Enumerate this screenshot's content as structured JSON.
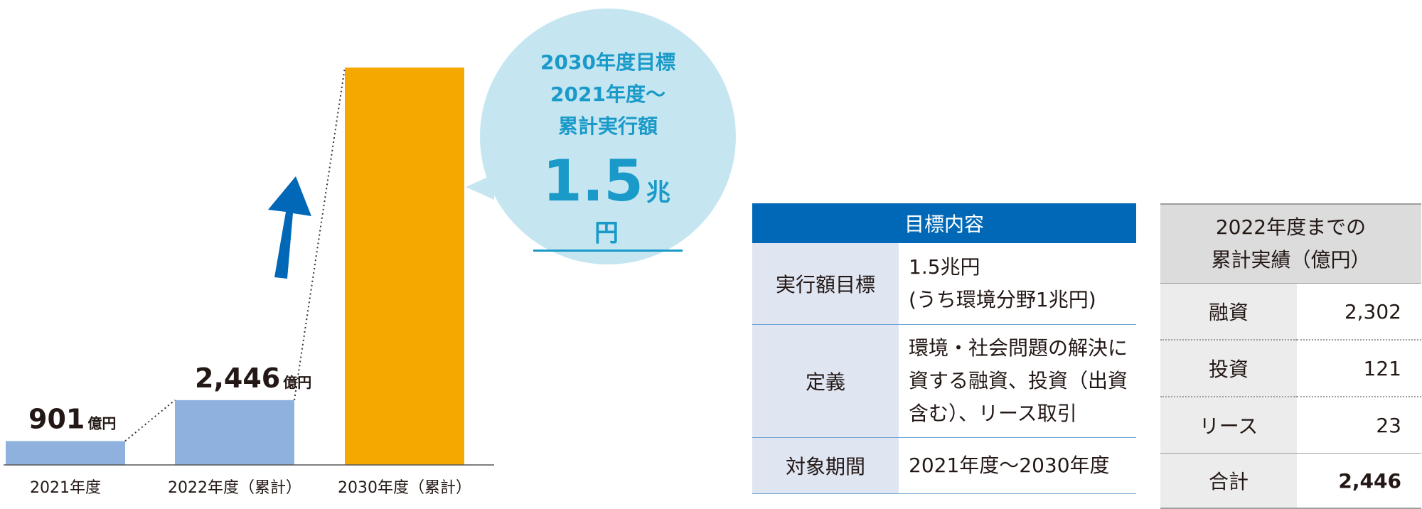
{
  "chart_data": {
    "type": "bar",
    "categories": [
      "2021年度",
      "2022年度（累計）",
      "2030年度（累計）"
    ],
    "values": [
      901,
      2446,
      15000
    ],
    "value_labels": [
      {
        "num": "901",
        "unit": "億円"
      },
      {
        "num": "2,446",
        "unit": "億円"
      },
      null
    ],
    "colors": [
      "#8eb1dd",
      "#8eb1dd",
      "#f5a800"
    ],
    "ylim": [
      0,
      15000
    ],
    "arrow_color": "#0068b6"
  },
  "bubble": {
    "line1": "2030年度目標",
    "line2": "2021年度～",
    "line3": "累計実行額",
    "value": "1.5",
    "unit": "兆円",
    "color": "#1a9ac9"
  },
  "target_table": {
    "header": "目標内容",
    "rows": [
      {
        "label": "実行額目標",
        "value_lines": [
          "1.5兆円",
          "(うち環境分野1兆円)"
        ]
      },
      {
        "label": "定義",
        "value_lines": [
          "環境・社会問題の解決に",
          "資する融資、投資（出資",
          "含む）、リース取引"
        ]
      },
      {
        "label": "対象期間",
        "value_lines": [
          "2021年度～2030年度"
        ]
      }
    ]
  },
  "results_table": {
    "header_lines": [
      "2022年度までの",
      "累計実績（億円）"
    ],
    "rows": [
      {
        "label": "融資",
        "value": "2,302"
      },
      {
        "label": "投資",
        "value": "121"
      },
      {
        "label": "リース",
        "value": "23"
      }
    ],
    "total": {
      "label": "合計",
      "value": "2,446"
    }
  }
}
